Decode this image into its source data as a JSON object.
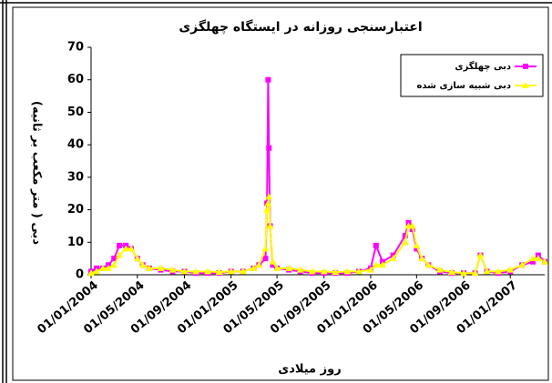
{
  "chart_data": {
    "type": "line",
    "title": "اعتبارسنجی روزانه در ایستگاه چهلگزی",
    "x_label": "روز میلادی",
    "y_label": "دبی ( متر مکعب بر ثانیه)",
    "x": [
      "01/01/2004",
      "15/01/2004",
      "01/02/2004",
      "15/02/2004",
      "01/03/2004",
      "15/03/2004",
      "01/04/2004",
      "15/04/2004",
      "01/05/2004",
      "15/05/2004",
      "01/06/2004",
      "01/07/2004",
      "01/08/2004",
      "01/09/2004",
      "01/10/2004",
      "01/11/2004",
      "01/12/2004",
      "01/01/2005",
      "01/02/2005",
      "01/03/2005",
      "15/03/2005",
      "01/04/2005",
      "05/04/2005",
      "08/04/2005",
      "10/04/2005",
      "13/04/2005",
      "20/04/2005",
      "01/05/2005",
      "01/06/2005",
      "01/07/2005",
      "01/08/2005",
      "01/09/2005",
      "01/10/2005",
      "01/11/2005",
      "01/12/2005",
      "01/01/2006",
      "15/01/2006",
      "01/02/2006",
      "01/03/2006",
      "01/04/2006",
      "10/04/2006",
      "20/04/2006",
      "01/05/2006",
      "15/05/2006",
      "01/06/2006",
      "01/07/2006",
      "01/08/2006",
      "01/09/2006",
      "01/10/2006",
      "15/10/2006",
      "01/11/2006",
      "01/12/2006",
      "01/01/2007",
      "01/02/2007",
      "01/03/2007",
      "15/03/2007",
      "01/04/2007"
    ],
    "series": [
      {
        "name": "دبی چهلگزی",
        "color": "#ff00ff",
        "marker": "square",
        "values": [
          1,
          2,
          2,
          3,
          5,
          9,
          9,
          8,
          5,
          3,
          2,
          1.5,
          1,
          1,
          0.5,
          0.5,
          0.5,
          1,
          1,
          2,
          3,
          5,
          22,
          60,
          39,
          15,
          3,
          2,
          1.5,
          1,
          0.5,
          0.5,
          0.5,
          0.5,
          1,
          2,
          9,
          4,
          6,
          12,
          16,
          14,
          8,
          5,
          3,
          1,
          0.5,
          0.5,
          0.5,
          6,
          1,
          0.5,
          1,
          3,
          4,
          6,
          4
        ]
      },
      {
        "name": "دبی شبیه سازی شده",
        "color": "#ffff00",
        "marker": "triangle",
        "values": [
          0.5,
          1,
          2,
          2,
          3,
          6,
          8,
          8,
          5,
          3,
          2,
          2,
          1.5,
          1,
          1,
          1,
          0.8,
          1,
          1,
          2,
          3,
          8,
          20,
          22,
          24,
          15,
          4,
          2,
          2,
          1.5,
          1,
          1,
          0.8,
          1,
          1,
          1.5,
          3,
          3,
          5,
          10,
          15,
          15,
          9,
          5,
          3,
          1.5,
          0.8,
          0.5,
          0.5,
          6,
          1,
          1,
          1.5,
          3,
          5,
          5,
          4
        ]
      }
    ],
    "xlim": [
      "01/01/2004",
      "01/04/2007"
    ],
    "xticks": [
      "01/01/2004",
      "01/05/2004",
      "01/09/2004",
      "01/01/2005",
      "01/05/2005",
      "01/09/2005",
      "01/01/2006",
      "01/05/2006",
      "01/09/2006",
      "01/01/2007"
    ],
    "ylim": [
      0,
      70
    ],
    "yticks": [
      0,
      10,
      20,
      30,
      40,
      50,
      60,
      70
    ],
    "grid": false,
    "legend": "upper right"
  }
}
